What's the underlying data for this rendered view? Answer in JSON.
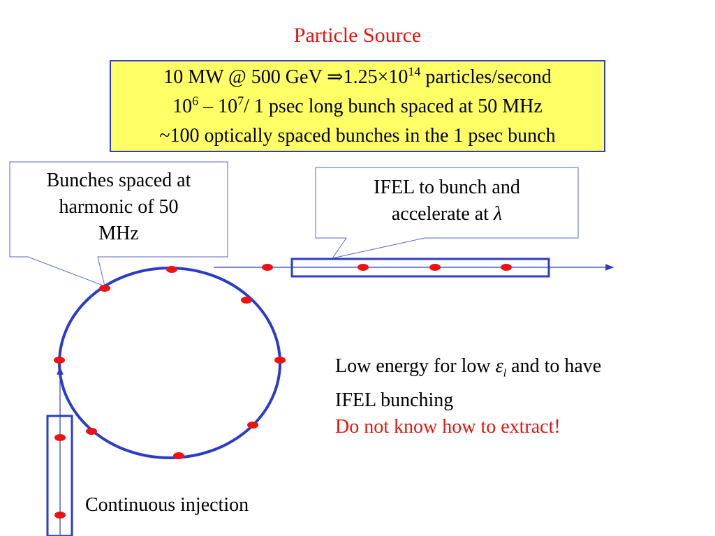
{
  "title": "Particle Source",
  "summary_box": {
    "line1_pre": "10 MW @ 500 GeV ⇒1.25×10",
    "line1_exp": "14",
    "line1_post": " particles/second",
    "line2_a": "10",
    "line2_exp1": "6",
    "line2_b": " – 10",
    "line2_exp2": "7",
    "line2_c": "/ 1 psec long bunch spaced at 50 MHz",
    "line3": "~100 optically spaced bunches in the 1 psec bunch"
  },
  "callout_left": {
    "line1": "Bunches spaced at",
    "line2": "harmonic of 50",
    "line3": "MHz"
  },
  "callout_right": {
    "line1": "IFEL to bunch and",
    "line2_pre": "accelerate at ",
    "line2_symbol": "λ"
  },
  "note": {
    "line1_pre": "Low energy for low ",
    "line1_symbol": "ε",
    "line1_sub": "l",
    "line1_post": " and to have",
    "line2": "IFEL bunching",
    "line3": "Do not know how to extract!"
  },
  "injection_label": "Continuous injection",
  "colors": {
    "title": "#e8120c",
    "ring": "#2a3cc8",
    "bunch": "#ee1111",
    "box_fill": "#ffff66",
    "callout_border": "#5566cc"
  }
}
